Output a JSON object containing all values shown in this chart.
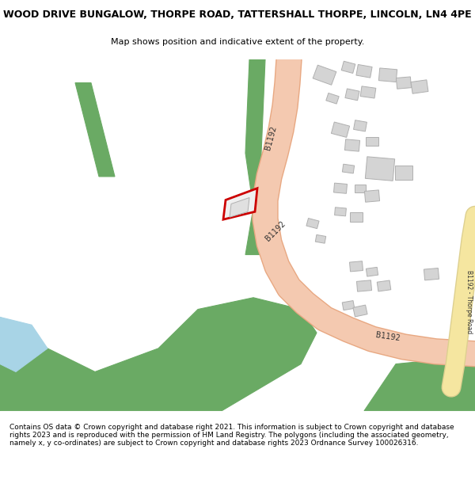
{
  "title_line1": "WOOD DRIVE BUNGALOW, THORPE ROAD, TATTERSHALL THORPE, LINCOLN, LN4 4PE",
  "title_line2": "Map shows position and indicative extent of the property.",
  "footer": "Contains OS data © Crown copyright and database right 2021. This information is subject to Crown copyright and database rights 2023 and is reproduced with the permission of HM Land Registry. The polygons (including the associated geometry, namely x, y co-ordinates) are subject to Crown copyright and database rights 2023 Ordnance Survey 100026316.",
  "bg_color": "#ffffff",
  "map_bg": "#ffffff",
  "road_color": "#f4c9b0",
  "road_edge_color": "#e8a882",
  "green_color": "#6aaa64",
  "building_color": "#cccccc",
  "building_edge": "#aaaaaa",
  "highlight_color": "#f5c8b8",
  "highlight_edge": "#cc0000",
  "water_color": "#a8d4e6",
  "label_color": "#333333",
  "yellow_road_color": "#f5e6a0",
  "fig_width": 6.0,
  "fig_height": 6.25,
  "title_fontsize": 9,
  "subtitle_fontsize": 8,
  "footer_fontsize": 6.5
}
